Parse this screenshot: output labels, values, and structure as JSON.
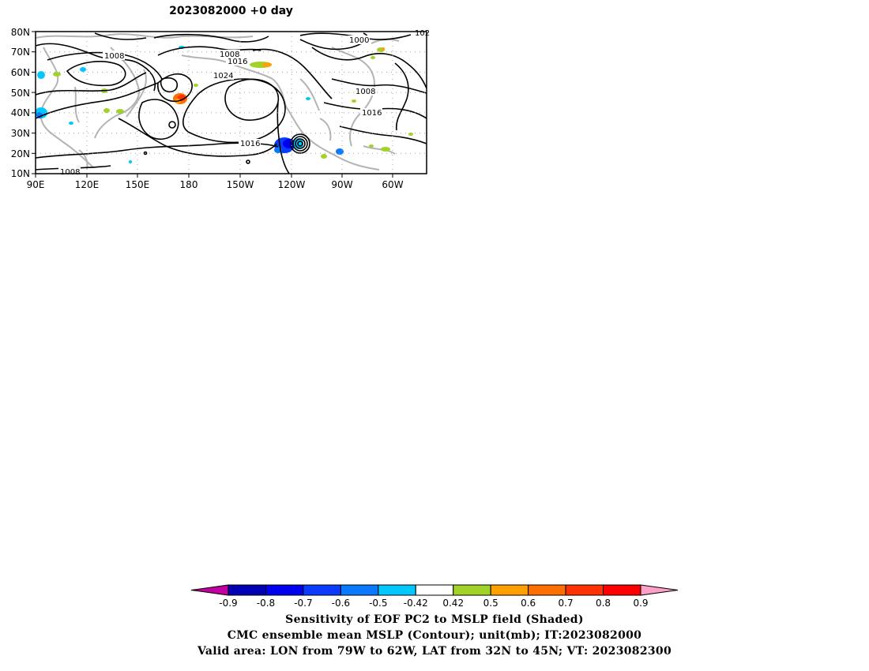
{
  "title": "2023082000  +0 day",
  "map": {
    "lat_labels": [
      "80N",
      "70N",
      "60N",
      "50N",
      "40N",
      "30N",
      "20N",
      "10N"
    ],
    "lon_labels": [
      "90E",
      "120E",
      "150E",
      "180",
      "150W",
      "120W",
      "90W",
      "60W"
    ],
    "contour_labels": [
      "1008",
      "1008",
      "1016",
      "1024",
      "1000",
      "1008",
      "1016",
      "1016",
      "1008",
      "102"
    ]
  },
  "colorbar": {
    "ticks": [
      "-0.9",
      "-0.8",
      "-0.7",
      "-0.6",
      "-0.5",
      "-0.42",
      "0.42",
      "0.5",
      "0.6",
      "0.7",
      "0.8",
      "0.9"
    ],
    "colors": [
      "#c000a0",
      "#0000b4",
      "#0000f0",
      "#0a3cff",
      "#0a78ff",
      "#00c8ff",
      "#ffffff",
      "#a0d228",
      "#ffa000",
      "#ff6e00",
      "#ff3200",
      "#ff0000",
      "#ffa0c8"
    ]
  },
  "captions": {
    "line1": "Sensitivity of EOF PC2 to MSLP field (Shaded)",
    "line2": "CMC ensemble mean MSLP (Contour); unit(mb); IT:2023082000",
    "line3": "Valid area: LON from 79W to 62W, LAT from 32N to 45N; VT: 2023082300"
  }
}
